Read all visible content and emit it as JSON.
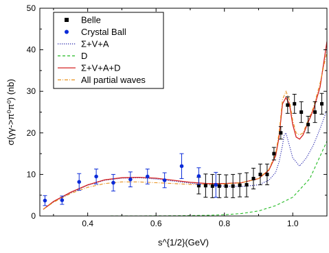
{
  "chart_data": {
    "type": "scatter",
    "title": "",
    "xlabel": "s^{1/2}(GeV)",
    "ylabel": "σ(γγ->π⁰π⁰) (nb)",
    "xlim": [
      0.26,
      1.1
    ],
    "ylim": [
      0,
      50
    ],
    "x_ticks": [
      0.4,
      0.6,
      0.8,
      1.0
    ],
    "y_ticks": [
      0,
      10,
      20,
      30,
      40,
      50
    ],
    "legend_position": "top-left",
    "series": [
      {
        "name": "Belle",
        "kind": "points",
        "marker": "square",
        "color": "#000000",
        "points": [
          {
            "x": 0.725,
            "y": 7.3,
            "err": 2.0
          },
          {
            "x": 0.745,
            "y": 7.3,
            "err": 2.8
          },
          {
            "x": 0.765,
            "y": 7.2,
            "err": 2.8
          },
          {
            "x": 0.785,
            "y": 7.2,
            "err": 2.8
          },
          {
            "x": 0.805,
            "y": 7.2,
            "err": 2.7
          },
          {
            "x": 0.825,
            "y": 7.2,
            "err": 2.8
          },
          {
            "x": 0.845,
            "y": 7.4,
            "err": 2.8
          },
          {
            "x": 0.865,
            "y": 7.5,
            "err": 2.9
          },
          {
            "x": 0.885,
            "y": 9.0,
            "err": 2.5
          },
          {
            "x": 0.905,
            "y": 10.0,
            "err": 2.5
          },
          {
            "x": 0.925,
            "y": 10.0,
            "err": 2.5
          },
          {
            "x": 0.945,
            "y": 15.0,
            "err": 1.5
          },
          {
            "x": 0.965,
            "y": 20.0,
            "err": 1.5
          },
          {
            "x": 0.985,
            "y": 26.7,
            "err": 2.0
          },
          {
            "x": 1.005,
            "y": 27.0,
            "err": 2.3
          },
          {
            "x": 1.025,
            "y": 25.0,
            "err": 2.5
          },
          {
            "x": 1.045,
            "y": 22.0,
            "err": 2.0
          },
          {
            "x": 1.065,
            "y": 25.0,
            "err": 2.5
          },
          {
            "x": 1.085,
            "y": 27.0,
            "err": 2.5
          },
          {
            "x": 1.105,
            "y": 31.7,
            "err": 2.5
          }
        ]
      },
      {
        "name": "Crystal Ball",
        "kind": "points",
        "marker": "circle",
        "color": "#0b2bd8",
        "points": [
          {
            "x": 0.275,
            "y": 3.7,
            "err": 1.2
          },
          {
            "x": 0.325,
            "y": 3.8,
            "err": 1.0
          },
          {
            "x": 0.375,
            "y": 8.2,
            "err": 2.0
          },
          {
            "x": 0.425,
            "y": 9.5,
            "err": 1.8
          },
          {
            "x": 0.475,
            "y": 8.0,
            "err": 2.0
          },
          {
            "x": 0.525,
            "y": 8.8,
            "err": 1.8
          },
          {
            "x": 0.575,
            "y": 9.5,
            "err": 1.8
          },
          {
            "x": 0.625,
            "y": 8.6,
            "err": 1.8
          },
          {
            "x": 0.675,
            "y": 12.0,
            "err": 3.0
          },
          {
            "x": 0.725,
            "y": 9.6,
            "err": 2.0
          },
          {
            "x": 0.775,
            "y": 7.5,
            "err": 3.0
          }
        ]
      },
      {
        "name": "Σ+V+A",
        "kind": "line",
        "style": "dotted",
        "color": "#1a1aa8",
        "x": [
          0.27,
          0.3,
          0.35,
          0.4,
          0.45,
          0.5,
          0.55,
          0.6,
          0.65,
          0.7,
          0.75,
          0.8,
          0.85,
          0.9,
          0.93,
          0.95,
          0.96,
          0.97,
          0.975,
          0.98,
          0.99,
          1.0,
          1.02,
          1.04,
          1.06,
          1.08,
          1.1
        ],
        "y": [
          1.6,
          3.4,
          5.6,
          7.4,
          8.6,
          9.1,
          9.2,
          8.9,
          8.4,
          7.9,
          7.5,
          7.2,
          7.1,
          7.5,
          8.6,
          10.5,
          13.0,
          17.0,
          19.5,
          20.0,
          17.0,
          14.0,
          12.0,
          14.0,
          17.0,
          21.0,
          25.5
        ]
      },
      {
        "name": "D",
        "kind": "line",
        "style": "dashed",
        "color": "#22bb22",
        "x": [
          0.27,
          0.35,
          0.45,
          0.55,
          0.65,
          0.7,
          0.75,
          0.8,
          0.85,
          0.9,
          0.95,
          1.0,
          1.05,
          1.1
        ],
        "y": [
          0.0,
          0.0,
          0.0,
          0.02,
          0.05,
          0.1,
          0.15,
          0.3,
          0.6,
          1.2,
          2.5,
          4.5,
          9.0,
          18.0
        ]
      },
      {
        "name": "Σ+V+A+D",
        "kind": "line",
        "style": "solid",
        "color": "#d42020",
        "x": [
          0.27,
          0.3,
          0.35,
          0.4,
          0.45,
          0.5,
          0.55,
          0.6,
          0.65,
          0.7,
          0.75,
          0.8,
          0.85,
          0.9,
          0.93,
          0.95,
          0.96,
          0.97,
          0.98,
          0.99,
          1.0,
          1.01,
          1.02,
          1.03,
          1.04,
          1.06,
          1.08,
          1.1
        ],
        "y": [
          1.6,
          3.5,
          5.7,
          7.5,
          8.7,
          9.2,
          9.3,
          9.1,
          8.6,
          8.1,
          7.8,
          7.8,
          8.0,
          9.0,
          11.0,
          14.5,
          19.0,
          27.0,
          28.5,
          27.0,
          22.0,
          19.0,
          18.5,
          19.5,
          21.5,
          25.5,
          31.0,
          42.0
        ]
      },
      {
        "name": "All partial waves",
        "kind": "line",
        "style": "dash-dot",
        "color": "#e8901a",
        "x": [
          0.27,
          0.3,
          0.35,
          0.4,
          0.45,
          0.5,
          0.55,
          0.6,
          0.65,
          0.7,
          0.75,
          0.8,
          0.85,
          0.9,
          0.93,
          0.95,
          0.96,
          0.97,
          0.98,
          0.99,
          1.0,
          1.01,
          1.02,
          1.03,
          1.04,
          1.06,
          1.08,
          1.1
        ],
        "y": [
          1.6,
          3.3,
          5.4,
          6.9,
          7.8,
          8.2,
          8.2,
          8.0,
          7.8,
          7.6,
          7.6,
          7.7,
          8.0,
          9.0,
          11.2,
          15.0,
          20.0,
          28.0,
          30.0,
          28.0,
          23.0,
          20.0,
          19.5,
          20.0,
          22.0,
          26.0,
          32.0,
          39.5
        ]
      }
    ]
  }
}
